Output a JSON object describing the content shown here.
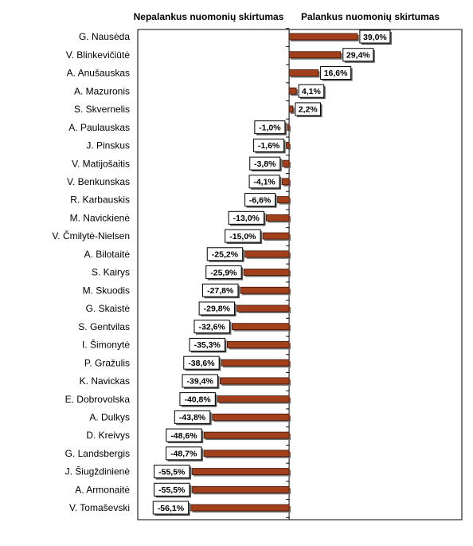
{
  "chart_data": {
    "type": "bar",
    "orientation": "horizontal",
    "left_heading": "Nepalankus nuomonių skirtumas",
    "right_heading": "Palankus nuomonių skirtumas",
    "categories": [
      "G. Nausėda",
      "V. Blinkevičiūtė",
      "A. Anušauskas",
      "A. Mazuronis",
      "S. Skvernelis",
      "A. Paulauskas",
      "J. Pinskus",
      "V. Matijošaitis",
      "V. Benkunskas",
      "R. Karbauskis",
      "M. Navickienė",
      "V. Čmilytė-Nielsen",
      "A. Bilotaitė",
      "S. Kairys",
      "M. Skuodis",
      "G. Skaistė",
      "S. Gentvilas",
      "I. Šimonytė",
      "P. Gražulis",
      "K. Navickas",
      "E. Dobrovolska",
      "A. Dulkys",
      "D. Kreivys",
      "G. Landsbergis",
      "J. Šiugždinienė",
      "A. Armonaitė",
      "V. Tomaševski"
    ],
    "values": [
      39.0,
      29.4,
      16.6,
      4.1,
      2.2,
      -1.0,
      -1.6,
      -3.8,
      -4.1,
      -6.6,
      -13.0,
      -15.0,
      -25.2,
      -25.9,
      -27.8,
      -29.8,
      -32.6,
      -35.3,
      -38.6,
      -39.4,
      -40.8,
      -43.8,
      -48.6,
      -48.7,
      -55.5,
      -55.5,
      -56.1
    ],
    "value_labels": [
      "39,0%",
      "29,4%",
      "16,6%",
      "4,1%",
      "2,2%",
      "-1,0%",
      "-1,6%",
      "-3,8%",
      "-4,1%",
      "-6,6%",
      "-13,0%",
      "-15,0%",
      "-25,2%",
      "-25,9%",
      "-27,8%",
      "-29,8%",
      "-32,6%",
      "-35,3%",
      "-38,6%",
      "-39,4%",
      "-40,8%",
      "-43,8%",
      "-48,6%",
      "-48,7%",
      "-55,5%",
      "-55,5%",
      "-56,1%"
    ],
    "color": "#a3401c",
    "xlim": [
      -86.4,
      98.6
    ]
  }
}
